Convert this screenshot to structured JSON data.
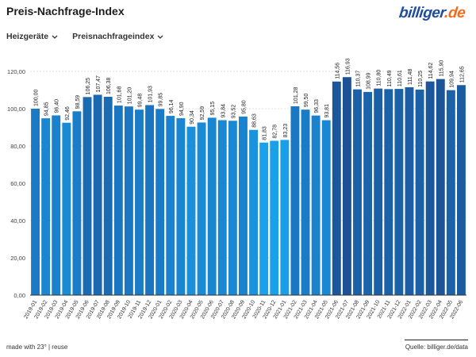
{
  "header": {
    "title": "Preis-Nachfrage-Index",
    "logo_part1": "billiger",
    "logo_part2": ".de"
  },
  "controls": {
    "category_dropdown": "Heizgeräte",
    "metric_dropdown": "Preisnachfrageindex"
  },
  "footer": {
    "left": "made with 23° | reuse",
    "right": "Quelle: billiger.de/data"
  },
  "chart_data": {
    "type": "bar",
    "title": "Preis-Nachfrage-Index",
    "xlabel": "",
    "ylabel": "",
    "ylim": [
      0,
      120
    ],
    "yticks": [
      "0,00",
      "20,00",
      "40,00",
      "60,00",
      "80,00",
      "100,00",
      "120,00"
    ],
    "ytick_values": [
      0,
      20,
      40,
      60,
      80,
      100,
      120
    ],
    "grid": true,
    "categories": [
      "2019-01",
      "2019-02",
      "2019-03",
      "2019-04",
      "2019-05",
      "2019-06",
      "2019-07",
      "2019-08",
      "2019-09",
      "2019-10",
      "2019-11",
      "2019-12",
      "2020-01",
      "2020-02",
      "2020-03",
      "2020-04",
      "2020-05",
      "2020-06",
      "2020-07",
      "2020-08",
      "2020-09",
      "2020-10",
      "2020-11",
      "2020-12",
      "2021-01",
      "2021-02",
      "2021-03",
      "2021-04",
      "2021-05",
      "2021-06",
      "2021-07",
      "2021-08",
      "2021-09",
      "2021-10",
      "2021-11",
      "2021-12",
      "2022-01",
      "2022-02",
      "2022-03",
      "2022-04",
      "2022-05",
      "2022-06"
    ],
    "values": [
      100.0,
      94.85,
      96.4,
      92.46,
      98.59,
      106.25,
      107.47,
      106.38,
      101.68,
      101.2,
      99.48,
      101.93,
      99.85,
      96.14,
      94.9,
      90.34,
      92.59,
      95.15,
      93.84,
      93.52,
      95.8,
      88.63,
      81.83,
      82.78,
      83.23,
      101.28,
      99.5,
      96.33,
      93.81,
      114.56,
      116.93,
      110.37,
      108.99,
      110.8,
      110.49,
      110.61,
      111.48,
      110.25,
      114.62,
      115.9,
      109.94,
      112.65
    ],
    "labels": [
      "100,00",
      "94,85",
      "96,40",
      "92,46",
      "98,59",
      "106,25",
      "107,47",
      "106,38",
      "101,68",
      "101,20",
      "99,48",
      "101,93",
      "99,85",
      "96,14",
      "94,90",
      "90,34",
      "92,59",
      "95,15",
      "93,84",
      "93,52",
      "95,80",
      "88,63",
      "81,83",
      "82,78",
      "83,23",
      "101,28",
      "99,50",
      "96,33",
      "93,81",
      "114,56",
      "116,93",
      "110,37",
      "108,99",
      "110,80",
      "110,49",
      "110,61",
      "111,48",
      "110,25",
      "114,62",
      "115,90",
      "109,94",
      "112,65"
    ],
    "color_scale": {
      "low": "#19a6ef",
      "mid": "#1a7cc8",
      "high": "#1c4f92",
      "min_value": 80,
      "max_value": 118
    },
    "legend": "none"
  }
}
